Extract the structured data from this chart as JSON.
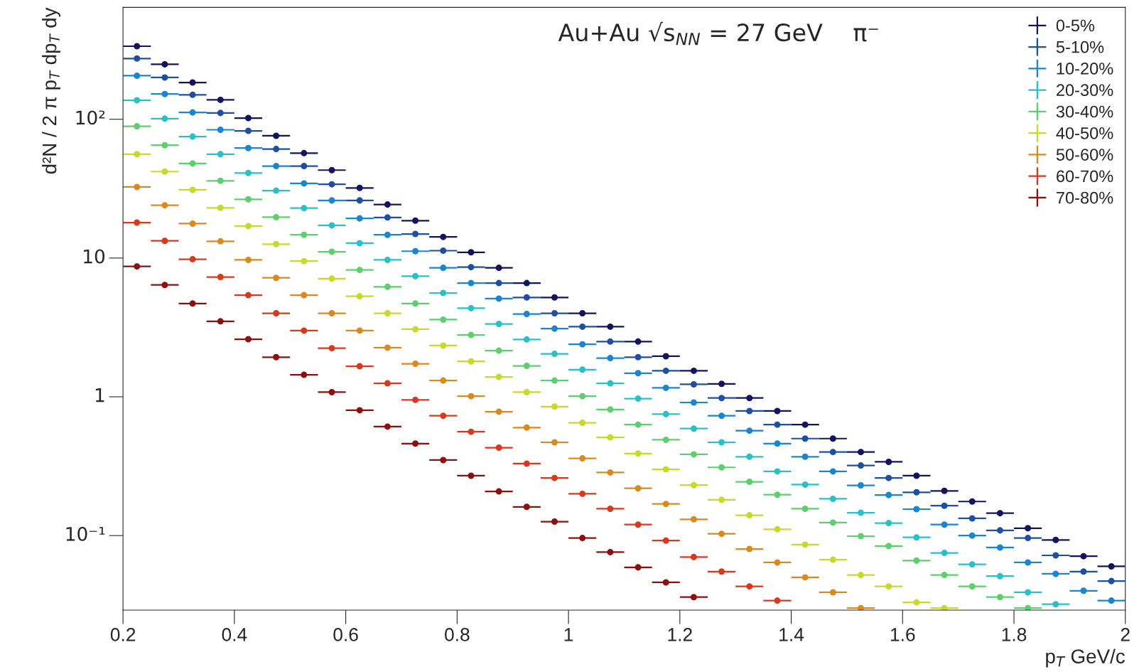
{
  "chart_data": {
    "type": "scatter",
    "title": "Au+Au √s$_{NN}$ = 27 GeV    π⁻",
    "xlabel": "p$_{T}$ GeV/c",
    "ylabel": "d²N / 2 π p$_{T}$ dp$_{T}$ dy",
    "x": [
      0.225,
      0.275,
      0.325,
      0.375,
      0.425,
      0.475,
      0.525,
      0.575,
      0.625,
      0.675,
      0.725,
      0.775,
      0.825,
      0.875,
      0.925,
      0.975,
      1.025,
      1.075,
      1.125,
      1.175,
      1.225,
      1.275,
      1.325,
      1.375,
      1.425,
      1.475,
      1.525,
      1.575,
      1.625,
      1.675,
      1.725,
      1.775,
      1.825,
      1.875,
      1.925,
      1.975
    ],
    "series": [
      {
        "name": "0-5%",
        "color": "#14145c",
        "values": [
          336,
          249,
          184,
          138,
          102,
          76,
          57,
          43,
          32,
          24.3,
          18.6,
          14.2,
          11.0,
          8.5,
          6.6,
          5.2,
          4.0,
          3.2,
          2.5,
          1.96,
          1.54,
          1.24,
          0.98,
          0.79,
          0.63,
          0.5,
          0.4,
          0.34,
          0.27,
          0.21,
          0.176,
          0.145,
          0.113,
          0.093,
          0.071,
          0.06
        ],
        "xerrors": [
          0.025,
          0.025,
          0.025,
          0.025,
          0.025,
          0.025,
          0.025,
          0.025,
          0.025,
          0.025,
          0.025,
          0.025,
          0.025,
          0.025,
          0.025,
          0.025,
          0.025,
          0.025,
          0.025,
          0.025,
          0.025,
          0.025,
          0.025,
          0.025,
          0.025,
          0.025,
          0.025,
          0.025,
          0.025,
          0.025,
          0.025,
          0.025,
          0.025,
          0.025,
          0.025,
          0.025
        ]
      },
      {
        "name": "5-10%",
        "color": "#1f4fa0",
        "values": [
          274,
          200,
          150,
          111,
          82.5,
          61,
          46,
          34,
          26,
          19.6,
          14.9,
          11.3,
          8.6,
          6.6,
          5.2,
          4.0,
          3.2,
          2.5,
          1.93,
          1.54,
          1.23,
          0.98,
          0.79,
          0.63,
          0.5,
          0.4,
          0.32,
          0.26,
          0.205,
          0.164,
          0.133,
          0.109,
          0.096,
          0.072,
          0.055,
          0.047
        ],
        "xerrors": [
          0.025,
          0.025,
          0.025,
          0.025,
          0.025,
          0.025,
          0.025,
          0.025,
          0.025,
          0.025,
          0.025,
          0.025,
          0.025,
          0.025,
          0.025,
          0.025,
          0.025,
          0.025,
          0.025,
          0.025,
          0.025,
          0.025,
          0.025,
          0.025,
          0.025,
          0.025,
          0.025,
          0.025,
          0.025,
          0.025,
          0.025,
          0.025,
          0.025,
          0.025,
          0.025,
          0.025
        ]
      },
      {
        "name": "10-20%",
        "color": "#1a85d0",
        "values": [
          206,
          152,
          112,
          84,
          62,
          46,
          34.5,
          26,
          19.3,
          14.7,
          11.2,
          8.5,
          6.6,
          5.1,
          3.95,
          3.1,
          2.39,
          1.9,
          1.48,
          1.16,
          0.91,
          0.73,
          0.57,
          0.46,
          0.37,
          0.29,
          0.23,
          0.196,
          0.155,
          0.12,
          0.1,
          0.082,
          0.064,
          0.053,
          0.04,
          0.034
        ],
        "xerrors": [
          0.025,
          0.025,
          0.025,
          0.025,
          0.025,
          0.025,
          0.025,
          0.025,
          0.025,
          0.025,
          0.025,
          0.025,
          0.025,
          0.025,
          0.025,
          0.025,
          0.025,
          0.025,
          0.025,
          0.025,
          0.025,
          0.025,
          0.025,
          0.025,
          0.025,
          0.025,
          0.025,
          0.025,
          0.025,
          0.025,
          0.025,
          0.025,
          0.025,
          0.025,
          0.025,
          0.025
        ]
      },
      {
        "name": "20-30%",
        "color": "#2cbfc8",
        "values": [
          137,
          101,
          75,
          56,
          41,
          30.6,
          22.9,
          17.2,
          12.8,
          9.7,
          7.4,
          5.6,
          4.35,
          3.35,
          2.59,
          2.04,
          1.57,
          1.25,
          0.97,
          0.75,
          0.59,
          0.47,
          0.37,
          0.29,
          0.233,
          0.184,
          0.146,
          0.123,
          0.097,
          0.075,
          0.062,
          0.051,
          0.039,
          0.032,
          null,
          null
        ],
        "xerrors": [
          0.025,
          0.025,
          0.025,
          0.025,
          0.025,
          0.025,
          0.025,
          0.025,
          0.025,
          0.025,
          0.025,
          0.025,
          0.025,
          0.025,
          0.025,
          0.025,
          0.025,
          0.025,
          0.025,
          0.025,
          0.025,
          0.025,
          0.025,
          0.025,
          0.025,
          0.025,
          0.025,
          0.025,
          0.025,
          0.025,
          0.025,
          0.025,
          0.025,
          0.025,
          null,
          null
        ]
      },
      {
        "name": "30-40%",
        "color": "#5fce6e",
        "values": [
          89,
          65,
          48,
          36,
          26.5,
          19.7,
          14.7,
          11.1,
          8.2,
          6.2,
          4.7,
          3.6,
          2.79,
          2.15,
          1.67,
          1.31,
          1.01,
          0.81,
          0.63,
          0.49,
          0.385,
          0.31,
          0.244,
          0.197,
          0.156,
          0.124,
          0.099,
          0.084,
          0.066,
          0.052,
          0.043,
          0.036,
          0.03,
          null,
          null,
          null
        ],
        "xerrors": [
          0.025,
          0.025,
          0.025,
          0.025,
          0.025,
          0.025,
          0.025,
          0.025,
          0.025,
          0.025,
          0.025,
          0.025,
          0.025,
          0.025,
          0.025,
          0.025,
          0.025,
          0.025,
          0.025,
          0.025,
          0.025,
          0.025,
          0.025,
          0.025,
          0.025,
          0.025,
          0.025,
          0.025,
          0.025,
          0.025,
          0.025,
          0.025,
          0.025,
          null,
          null,
          null
        ]
      },
      {
        "name": "40-50%",
        "color": "#c6d92c",
        "values": [
          56,
          42,
          31,
          23,
          17,
          12.6,
          9.5,
          7.1,
          5.3,
          4.0,
          3.07,
          2.34,
          1.8,
          1.39,
          1.08,
          0.85,
          0.65,
          0.51,
          0.39,
          0.3,
          0.231,
          0.181,
          0.14,
          0.111,
          0.086,
          0.067,
          0.052,
          0.043,
          0.033,
          0.03,
          null,
          null,
          null,
          null,
          null,
          null
        ],
        "xerrors": [
          0.025,
          0.025,
          0.025,
          0.025,
          0.025,
          0.025,
          0.025,
          0.025,
          0.025,
          0.025,
          0.025,
          0.025,
          0.025,
          0.025,
          0.025,
          0.025,
          0.025,
          0.025,
          0.025,
          0.025,
          0.025,
          0.025,
          0.025,
          0.025,
          0.025,
          0.025,
          0.025,
          0.025,
          0.025,
          0.025,
          null,
          null,
          null,
          null,
          null,
          null
        ]
      },
      {
        "name": "50-60%",
        "color": "#d88a20",
        "values": [
          32.5,
          24,
          17.7,
          13.2,
          9.7,
          7.2,
          5.4,
          4.0,
          3.0,
          2.26,
          1.73,
          1.31,
          1.01,
          0.78,
          0.6,
          0.47,
          0.36,
          0.285,
          0.219,
          0.169,
          0.131,
          0.103,
          0.08,
          0.064,
          0.05,
          0.039,
          0.03,
          null,
          null,
          null,
          null,
          null,
          null,
          null,
          null,
          null
        ],
        "xerrors": [
          0.025,
          0.025,
          0.025,
          0.025,
          0.025,
          0.025,
          0.025,
          0.025,
          0.025,
          0.025,
          0.025,
          0.025,
          0.025,
          0.025,
          0.025,
          0.025,
          0.025,
          0.025,
          0.025,
          0.025,
          0.025,
          0.025,
          0.025,
          0.025,
          0.025,
          0.025,
          0.025,
          null,
          null,
          null,
          null,
          null,
          null,
          null,
          null,
          null
        ]
      },
      {
        "name": "60-70%",
        "color": "#d63a1e",
        "values": [
          18.0,
          13.3,
          9.8,
          7.3,
          5.4,
          4.0,
          3.0,
          2.24,
          1.66,
          1.25,
          0.95,
          0.73,
          0.56,
          0.43,
          0.33,
          0.26,
          0.2,
          0.156,
          0.12,
          0.092,
          0.07,
          0.055,
          0.043,
          0.034,
          null,
          null,
          null,
          null,
          null,
          null,
          null,
          null,
          null,
          null,
          null,
          null
        ],
        "xerrors": [
          0.025,
          0.025,
          0.025,
          0.025,
          0.025,
          0.025,
          0.025,
          0.025,
          0.025,
          0.025,
          0.025,
          0.025,
          0.025,
          0.025,
          0.025,
          0.025,
          0.025,
          0.025,
          0.025,
          0.025,
          0.025,
          0.025,
          0.025,
          0.025,
          null,
          null,
          null,
          null,
          null,
          null,
          null,
          null,
          null,
          null,
          null,
          null
        ]
      },
      {
        "name": "70-80%",
        "color": "#8b1010",
        "values": [
          8.7,
          6.4,
          4.7,
          3.5,
          2.6,
          1.93,
          1.44,
          1.08,
          0.8,
          0.61,
          0.46,
          0.35,
          0.27,
          0.208,
          0.161,
          0.126,
          0.096,
          0.076,
          0.059,
          0.046,
          0.036,
          null,
          null,
          null,
          null,
          null,
          null,
          null,
          null,
          null,
          null,
          null,
          null,
          null,
          null,
          null
        ],
        "xerrors": [
          0.025,
          0.025,
          0.025,
          0.025,
          0.025,
          0.025,
          0.025,
          0.025,
          0.025,
          0.025,
          0.025,
          0.025,
          0.025,
          0.025,
          0.025,
          0.025,
          0.025,
          0.025,
          0.025,
          0.025,
          0.025,
          null,
          null,
          null,
          null,
          null,
          null,
          null,
          null,
          null,
          null,
          null,
          null,
          null,
          null,
          null
        ]
      }
    ],
    "log": "y",
    "xlim": [
      0.2,
      2
    ],
    "ylim": [
      0.029,
      640
    ],
    "xticks": [
      0.2,
      0.4,
      0.6,
      0.8,
      1,
      1.2,
      1.4,
      1.6,
      1.8,
      2
    ],
    "yticks": [
      {
        "value": 0.1,
        "label": "10⁻¹"
      },
      1,
      10,
      {
        "value": 100,
        "label": "10²"
      }
    ],
    "marker": "circle",
    "grid": false,
    "legend": "top right"
  }
}
